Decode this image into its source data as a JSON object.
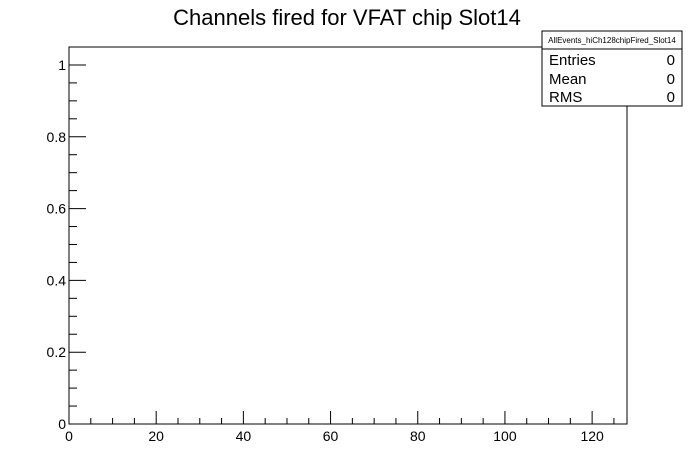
{
  "chart_data": {
    "type": "bar",
    "title": "Channels fired for VFAT chip Slot14",
    "xlabel": "",
    "ylabel": "",
    "xlim": [
      0,
      128
    ],
    "ylim": [
      0,
      1.05
    ],
    "x_ticks": [
      0,
      20,
      40,
      60,
      80,
      100,
      120
    ],
    "x_tick_labels": [
      "0",
      "20",
      "40",
      "60",
      "80",
      "100",
      "120"
    ],
    "y_ticks": [
      0,
      0.2,
      0.4,
      0.6,
      0.8,
      1
    ],
    "y_tick_labels": [
      "0",
      "0.2",
      "0.4",
      "0.6",
      "0.8",
      "1"
    ],
    "grid": false,
    "legend": "none",
    "series": [
      {
        "values": []
      }
    ],
    "stats_box": {
      "name": "AllEvents_hiCh128chipFired_Slot14",
      "placement": "top-right",
      "rows": [
        {
          "label": "Entries",
          "value": "0"
        },
        {
          "label": "Mean",
          "value": "0"
        },
        {
          "label": "RMS",
          "value": "0"
        }
      ]
    }
  }
}
